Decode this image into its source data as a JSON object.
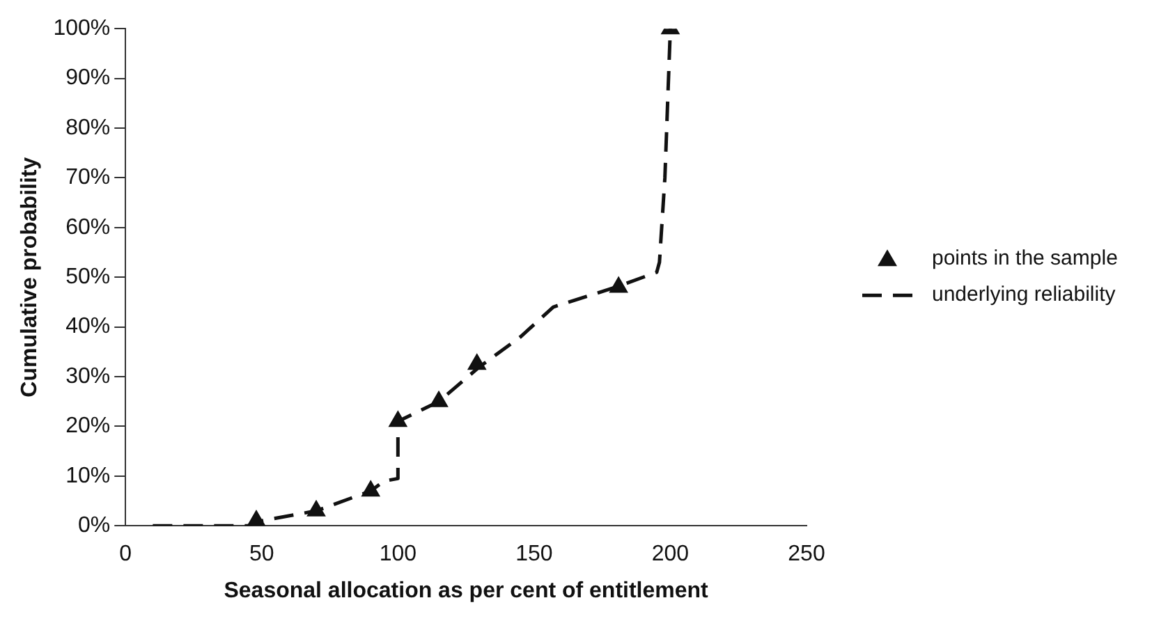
{
  "chart_data": {
    "type": "scatter",
    "xlabel": "Seasonal allocation as per cent of entitlement",
    "ylabel": "Cumulative probability",
    "xlim": [
      0,
      250
    ],
    "xticks": [
      0,
      50,
      100,
      150,
      200,
      250
    ],
    "ylim": [
      0,
      100
    ],
    "yticks": [
      {
        "value": 0,
        "label": "0%"
      },
      {
        "value": 10,
        "label": "10%"
      },
      {
        "value": 20,
        "label": "20%"
      },
      {
        "value": 30,
        "label": "30%"
      },
      {
        "value": 40,
        "label": "40%"
      },
      {
        "value": 50,
        "label": "50%"
      },
      {
        "value": 60,
        "label": "60%"
      },
      {
        "value": 70,
        "label": "70%"
      },
      {
        "value": 80,
        "label": "80%"
      },
      {
        "value": 90,
        "label": "90%"
      },
      {
        "value": 100,
        "label": "100%"
      }
    ],
    "legend": "right",
    "grid": false,
    "series": [
      {
        "name": "points in the sample",
        "type": "scatter",
        "color": "#111111",
        "marker": "triangle",
        "x": [
          48,
          70,
          90,
          100,
          115,
          129,
          181,
          200
        ],
        "values": [
          1,
          3,
          7,
          21,
          25,
          32.5,
          48,
          100
        ]
      },
      {
        "name": "underlying reliability",
        "type": "line",
        "color": "#111111",
        "marker": "none",
        "line_style": "dashed",
        "x": [
          10,
          45,
          50,
          70,
          90,
          95,
          100,
          100,
          115,
          130,
          145,
          157,
          180,
          195,
          196,
          198,
          200
        ],
        "values": [
          0,
          0,
          1,
          3,
          7,
          9,
          9.5,
          21,
          25,
          32,
          38,
          44,
          48,
          51,
          53,
          70,
          100
        ]
      }
    ]
  }
}
